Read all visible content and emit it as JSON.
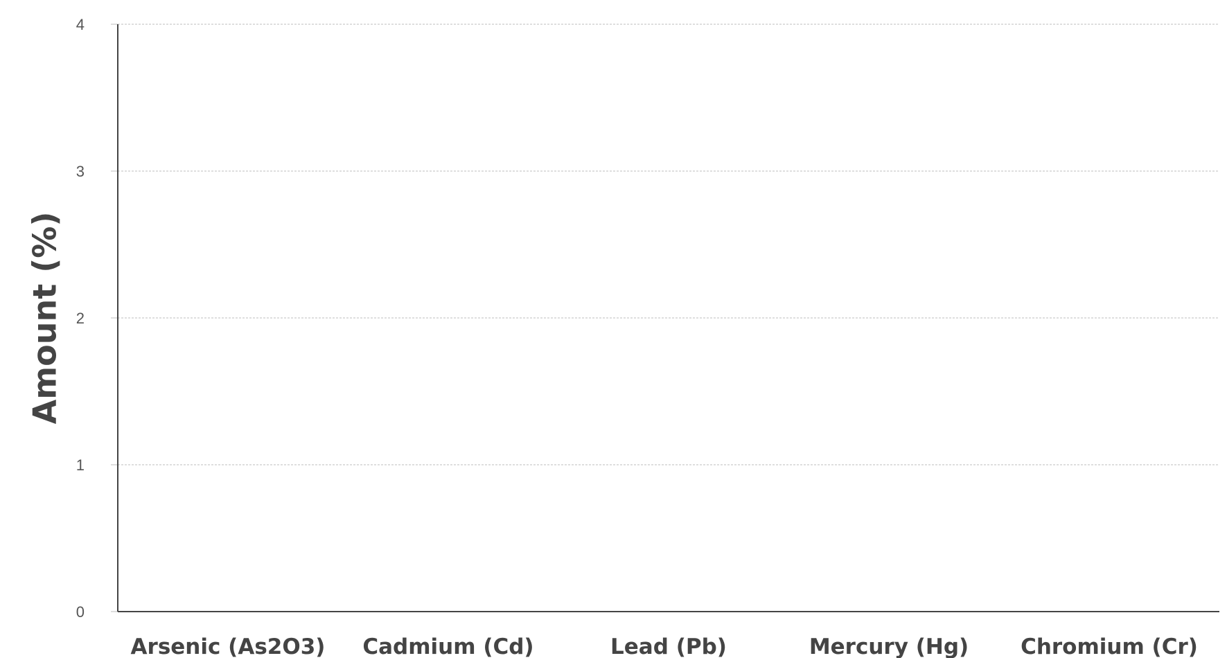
{
  "chart_data": {
    "type": "bar",
    "title": "",
    "xlabel": "",
    "ylabel": "Amount (%)",
    "categories": [
      "Arsenic (As2O3)",
      "Cadmium (Cd)",
      "Lead (Pb)",
      "Mercury (Hg)",
      "Chromium (Cr)"
    ],
    "values": [
      0,
      0,
      0,
      0,
      0
    ],
    "ylim": [
      0,
      4
    ],
    "yticks": [
      "0",
      "1",
      "2",
      "3",
      "4"
    ],
    "grid": true,
    "legend": "none",
    "colors": {
      "axis": "#444444",
      "grid": "#bdbdbd",
      "tick_text": "#555555",
      "label_text": "#444444"
    }
  }
}
